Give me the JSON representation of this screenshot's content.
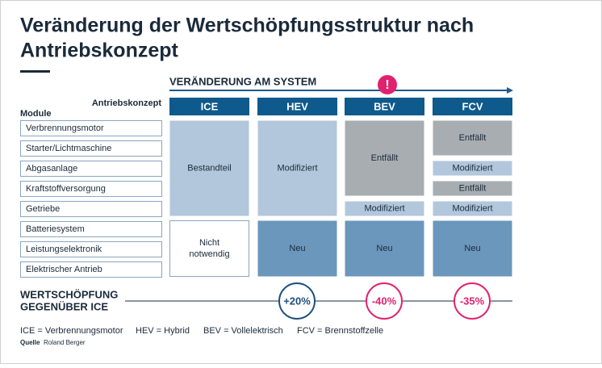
{
  "title": [
    "Veränderung der Wertschöpfungsstruktur nach",
    "Antriebskonzept"
  ],
  "system_label": "VERÄNDERUNG AM SYSTEM",
  "alert": "!",
  "concept_label": "Antriebskonzept",
  "module_label": "Module",
  "modules": [
    "Verbrennungsmotor",
    "Starter/Lichtmaschine",
    "Abgasanlage",
    "Kraftstoffversorgung",
    "Getriebe",
    "Batteriesystem",
    "Leistungselektronik",
    "Elektrischer Antrieb"
  ],
  "columns": [
    {
      "header": "ICE",
      "cells": [
        "Bestandteil",
        "Nicht notwendig"
      ],
      "change": "",
      "tone": ""
    },
    {
      "header": "HEV",
      "cells": [
        "Modifiziert",
        "Neu"
      ],
      "change": "+20%",
      "tone": "positive"
    },
    {
      "header": "BEV",
      "cells": [
        "Entfällt",
        "Modifiziert",
        "Neu"
      ],
      "change": "-40%",
      "tone": "negative"
    },
    {
      "header": "FCV",
      "cells": [
        "Entfällt",
        "Modifiziert",
        "Entfällt",
        "Modifiziert",
        "Neu"
      ],
      "change": "-35%",
      "tone": "negative"
    }
  ],
  "value_label": [
    "WERTSCHÖPFUNG",
    "GEGENÜBER ICE"
  ],
  "legend": [
    "ICE = Verbrennungsmotor",
    "HEV = Hybrid",
    "BEV = Vollelektrisch",
    "FCV = Brennstoffzelle"
  ],
  "source": {
    "label": "Quelle",
    "text": "Roland Berger"
  }
}
